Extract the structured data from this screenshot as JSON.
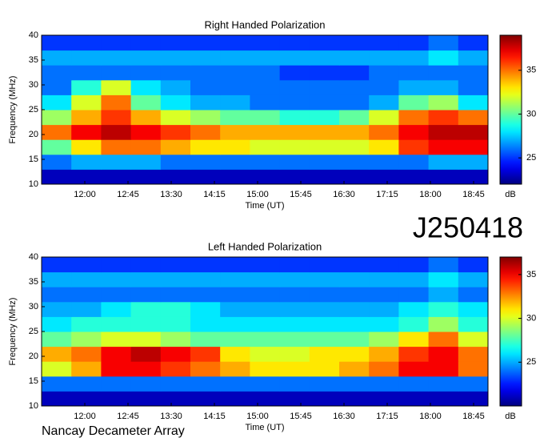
{
  "chart_data": [
    {
      "type": "heatmap",
      "title": "Right Handed Polarization",
      "x_label": "Time (UT)",
      "y_label": "Frequency (MHz)",
      "colorbar_label": "dB",
      "colormap": "jet",
      "x_edges": [
        675,
        706,
        737,
        768,
        799,
        830,
        861,
        892,
        923,
        954,
        985,
        1016,
        1047,
        1078,
        1109,
        1140
      ],
      "y_edges": [
        10,
        13,
        16,
        19,
        22,
        25,
        28,
        31,
        34,
        37,
        40
      ],
      "z": [
        [
          23,
          23,
          23,
          23,
          23,
          23,
          23,
          23,
          23,
          23,
          23,
          23,
          23,
          23,
          23
        ],
        [
          26,
          27,
          27,
          27,
          26,
          26,
          26,
          26,
          26,
          26,
          26,
          26,
          26,
          27,
          27
        ],
        [
          30,
          33,
          35,
          35,
          34,
          33,
          33,
          32,
          32,
          32,
          32,
          33,
          36,
          37,
          37
        ],
        [
          35,
          37,
          38,
          37,
          36,
          35,
          34,
          34,
          34,
          34,
          34,
          35,
          37,
          38,
          38
        ],
        [
          31,
          34,
          36,
          34,
          32,
          31,
          30,
          30,
          29,
          29,
          30,
          32,
          35,
          36,
          35
        ],
        [
          28,
          32,
          35,
          30,
          28,
          27,
          27,
          26,
          26,
          26,
          26,
          27,
          30,
          31,
          28
        ],
        [
          26,
          29,
          32,
          28,
          27,
          26,
          26,
          26,
          26,
          26,
          26,
          26,
          27,
          27,
          26
        ],
        [
          26,
          26,
          26,
          26,
          26,
          26,
          26,
          26,
          25,
          25,
          25,
          26,
          26,
          26,
          26
        ],
        [
          27,
          27,
          27,
          27,
          27,
          27,
          27,
          27,
          27,
          27,
          27,
          27,
          27,
          28,
          27
        ],
        [
          25,
          25,
          25,
          25,
          25,
          25,
          25,
          25,
          25,
          25,
          25,
          25,
          25,
          26,
          25
        ]
      ],
      "xlim": [
        675,
        1140
      ],
      "ylim": [
        10,
        40
      ],
      "xticks": [
        {
          "value": 720,
          "label": "12:00"
        },
        {
          "value": 765,
          "label": "12:45"
        },
        {
          "value": 810,
          "label": "13:30"
        },
        {
          "value": 855,
          "label": "14:15"
        },
        {
          "value": 900,
          "label": "15:00"
        },
        {
          "value": 945,
          "label": "15:45"
        },
        {
          "value": 990,
          "label": "16:30"
        },
        {
          "value": 1035,
          "label": "17:15"
        },
        {
          "value": 1080,
          "label": "18:00"
        },
        {
          "value": 1125,
          "label": "18:45"
        }
      ],
      "yticks": [
        10,
        15,
        20,
        25,
        30,
        35,
        40
      ],
      "clim": [
        22,
        39
      ],
      "cticks": [
        25,
        30,
        35
      ]
    },
    {
      "type": "heatmap",
      "title": "Left Handed Polarization",
      "x_label": "Time (UT)",
      "y_label": "Frequency (MHz)",
      "colorbar_label": "dB",
      "colormap": "jet",
      "x_edges": [
        675,
        706,
        737,
        768,
        799,
        830,
        861,
        892,
        923,
        954,
        985,
        1016,
        1047,
        1078,
        1109,
        1140
      ],
      "y_edges": [
        10,
        13,
        16,
        19,
        22,
        25,
        28,
        31,
        34,
        37,
        40
      ],
      "z": [
        [
          21,
          21,
          21,
          21,
          21,
          21,
          21,
          21,
          21,
          21,
          21,
          21,
          21,
          21,
          21
        ],
        [
          24,
          24,
          24,
          24,
          24,
          24,
          24,
          24,
          24,
          24,
          24,
          24,
          24,
          24,
          24
        ],
        [
          30,
          32,
          35,
          35,
          34,
          33,
          32,
          31,
          31,
          31,
          32,
          33,
          35,
          35,
          33
        ],
        [
          32,
          33,
          35,
          36,
          35,
          34,
          31,
          30,
          30,
          31,
          31,
          32,
          34,
          35,
          33
        ],
        [
          28,
          29,
          30,
          30,
          29,
          28,
          28,
          28,
          28,
          28,
          28,
          29,
          31,
          33,
          30
        ],
        [
          26,
          27,
          27,
          27,
          27,
          26,
          26,
          26,
          26,
          26,
          26,
          26,
          27,
          29,
          27
        ],
        [
          25,
          25,
          26,
          27,
          27,
          26,
          25,
          25,
          25,
          25,
          25,
          25,
          26,
          27,
          26
        ],
        [
          24,
          24,
          24,
          24,
          24,
          24,
          24,
          24,
          24,
          24,
          24,
          24,
          24,
          25,
          24
        ],
        [
          25,
          25,
          25,
          25,
          25,
          25,
          25,
          25,
          25,
          25,
          25,
          25,
          25,
          26,
          25
        ],
        [
          23,
          23,
          23,
          23,
          23,
          23,
          23,
          23,
          23,
          23,
          23,
          23,
          23,
          24,
          23
        ]
      ],
      "xlim": [
        675,
        1140
      ],
      "ylim": [
        10,
        40
      ],
      "xticks": [
        {
          "value": 720,
          "label": "12:00"
        },
        {
          "value": 765,
          "label": "12:45"
        },
        {
          "value": 810,
          "label": "13:30"
        },
        {
          "value": 855,
          "label": "14:15"
        },
        {
          "value": 900,
          "label": "15:00"
        },
        {
          "value": 945,
          "label": "15:45"
        },
        {
          "value": 990,
          "label": "16:30"
        },
        {
          "value": 1035,
          "label": "17:15"
        },
        {
          "value": 1080,
          "label": "18:00"
        },
        {
          "value": 1125,
          "label": "18:45"
        }
      ],
      "yticks": [
        10,
        15,
        20,
        25,
        30,
        35,
        40
      ],
      "clim": [
        20,
        37
      ],
      "cticks": [
        25,
        30,
        35
      ]
    }
  ],
  "station_label": "J250418",
  "footer": "Nancay Decameter Array"
}
